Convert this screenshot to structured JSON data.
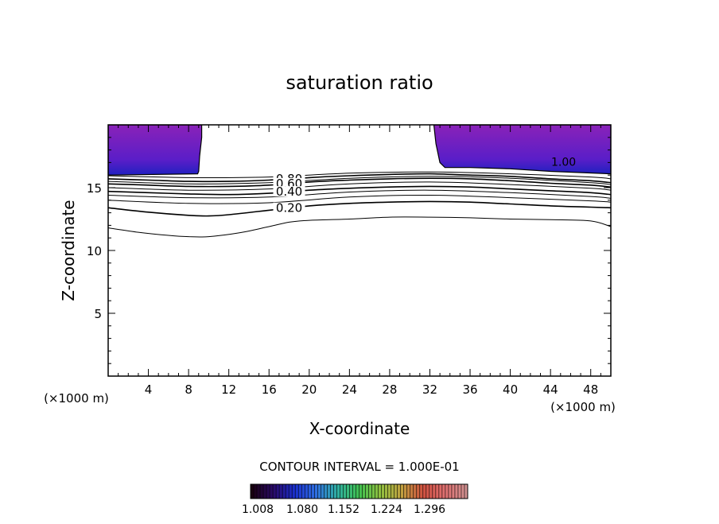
{
  "chart_data": {
    "type": "contour",
    "title": "saturation ratio",
    "xlabel": "X-coordinate",
    "ylabel": "Z-coordinate",
    "x_unit_label": "(×1000 m)",
    "z_unit_label": "(×1000 m)",
    "xlim": [
      0,
      50
    ],
    "ylim": [
      0,
      20
    ],
    "x_ticks": [
      4,
      8,
      12,
      16,
      20,
      24,
      28,
      32,
      36,
      40,
      44,
      48
    ],
    "y_ticks": [
      5,
      10,
      15
    ],
    "grid": false,
    "contour_interval_label": "CONTOUR INTERVAL = 1.000E-01",
    "colorbar": {
      "tick_labels": [
        "1.008",
        "1.080",
        "1.152",
        "1.224",
        "1.296"
      ],
      "colors": [
        "#1a0010",
        "#2a0a6a",
        "#1a30d0",
        "#3070e0",
        "#30b0a0",
        "#40c050",
        "#90c040",
        "#c0a040",
        "#d05040",
        "#e07070",
        "#d09090"
      ]
    },
    "supersaturated_regions": [
      {
        "boundary_label": "",
        "x": [
          0,
          8.9,
          9.0,
          9.1,
          9.3,
          9.3
        ],
        "top": 20,
        "bottom": [
          16.0,
          16.1,
          16.3,
          17.5,
          19.0,
          20.0
        ]
      },
      {
        "boundary_label": "1.00",
        "x": [
          32.4,
          32.6,
          33.0,
          33.5,
          36,
          40,
          44,
          50
        ],
        "top": 20,
        "bottom": [
          20.0,
          18.5,
          17.0,
          16.6,
          16.6,
          16.5,
          16.3,
          16.1
        ]
      }
    ],
    "fill_colors": {
      "deep": "#8a22b8",
      "mid": "#5a1ec8",
      "edge": "#2020c0"
    },
    "contours": [
      {
        "level_label": "0.80",
        "label_x": 18.0,
        "x": [
          0,
          4,
          8,
          12,
          16,
          20,
          24,
          28,
          32,
          36,
          40,
          44,
          48,
          50
        ],
        "z": [
          15.7,
          15.6,
          15.5,
          15.5,
          15.6,
          15.8,
          15.95,
          16.05,
          16.1,
          16.0,
          15.9,
          15.7,
          15.55,
          15.4
        ]
      },
      {
        "level_label": "0.60",
        "label_x": 18.0,
        "x": [
          0,
          4,
          8,
          12,
          16,
          20,
          24,
          28,
          32,
          36,
          40,
          44,
          48,
          50
        ],
        "z": [
          15.3,
          15.2,
          15.1,
          15.1,
          15.2,
          15.45,
          15.6,
          15.7,
          15.75,
          15.7,
          15.55,
          15.35,
          15.2,
          15.05
        ]
      },
      {
        "level_label": "0.40",
        "label_x": 18.0,
        "x": [
          0,
          4,
          8,
          12,
          16,
          20,
          24,
          28,
          32,
          36,
          40,
          44,
          48,
          50
        ],
        "z": [
          14.7,
          14.6,
          14.5,
          14.45,
          14.55,
          14.8,
          14.95,
          15.05,
          15.1,
          15.05,
          14.9,
          14.75,
          14.6,
          14.45
        ]
      },
      {
        "level_label": "0.20",
        "label_x": 18.0,
        "x": [
          0,
          4,
          8,
          10,
          12,
          16,
          20,
          24,
          28,
          32,
          36,
          40,
          44,
          48,
          50
        ],
        "z": [
          13.4,
          13.05,
          12.8,
          12.75,
          12.85,
          13.2,
          13.55,
          13.75,
          13.85,
          13.9,
          13.85,
          13.7,
          13.55,
          13.45,
          13.4
        ]
      },
      {
        "level_label": "",
        "label_x": null,
        "x": [
          0,
          3,
          6,
          8,
          10,
          13,
          16,
          18,
          20,
          24,
          28,
          32,
          36,
          40,
          44,
          48,
          50
        ],
        "z": [
          11.8,
          11.45,
          11.2,
          11.1,
          11.1,
          11.4,
          11.9,
          12.25,
          12.4,
          12.5,
          12.65,
          12.65,
          12.6,
          12.5,
          12.45,
          12.35,
          11.9
        ]
      }
    ],
    "minor_contours": [
      {
        "x": [
          0,
          8,
          16,
          24,
          32,
          40,
          48,
          50
        ],
        "z": [
          15.95,
          15.8,
          15.85,
          16.15,
          16.25,
          16.1,
          15.85,
          15.7
        ]
      },
      {
        "x": [
          0,
          8,
          16,
          24,
          32,
          40,
          48,
          50
        ],
        "z": [
          15.5,
          15.3,
          15.4,
          15.75,
          15.9,
          15.75,
          15.4,
          15.25
        ]
      },
      {
        "x": [
          0,
          8,
          16,
          24,
          32,
          40,
          48,
          50
        ],
        "z": [
          15.0,
          14.8,
          14.9,
          15.3,
          15.45,
          15.25,
          14.95,
          14.8
        ]
      },
      {
        "x": [
          0,
          8,
          16,
          24,
          32,
          40,
          48,
          50
        ],
        "z": [
          14.4,
          14.2,
          14.25,
          14.65,
          14.8,
          14.6,
          14.3,
          14.15
        ]
      },
      {
        "x": [
          0,
          8,
          16,
          24,
          32,
          40,
          48,
          50
        ],
        "z": [
          14.0,
          13.75,
          13.8,
          14.25,
          14.4,
          14.2,
          13.95,
          13.85
        ]
      }
    ]
  }
}
